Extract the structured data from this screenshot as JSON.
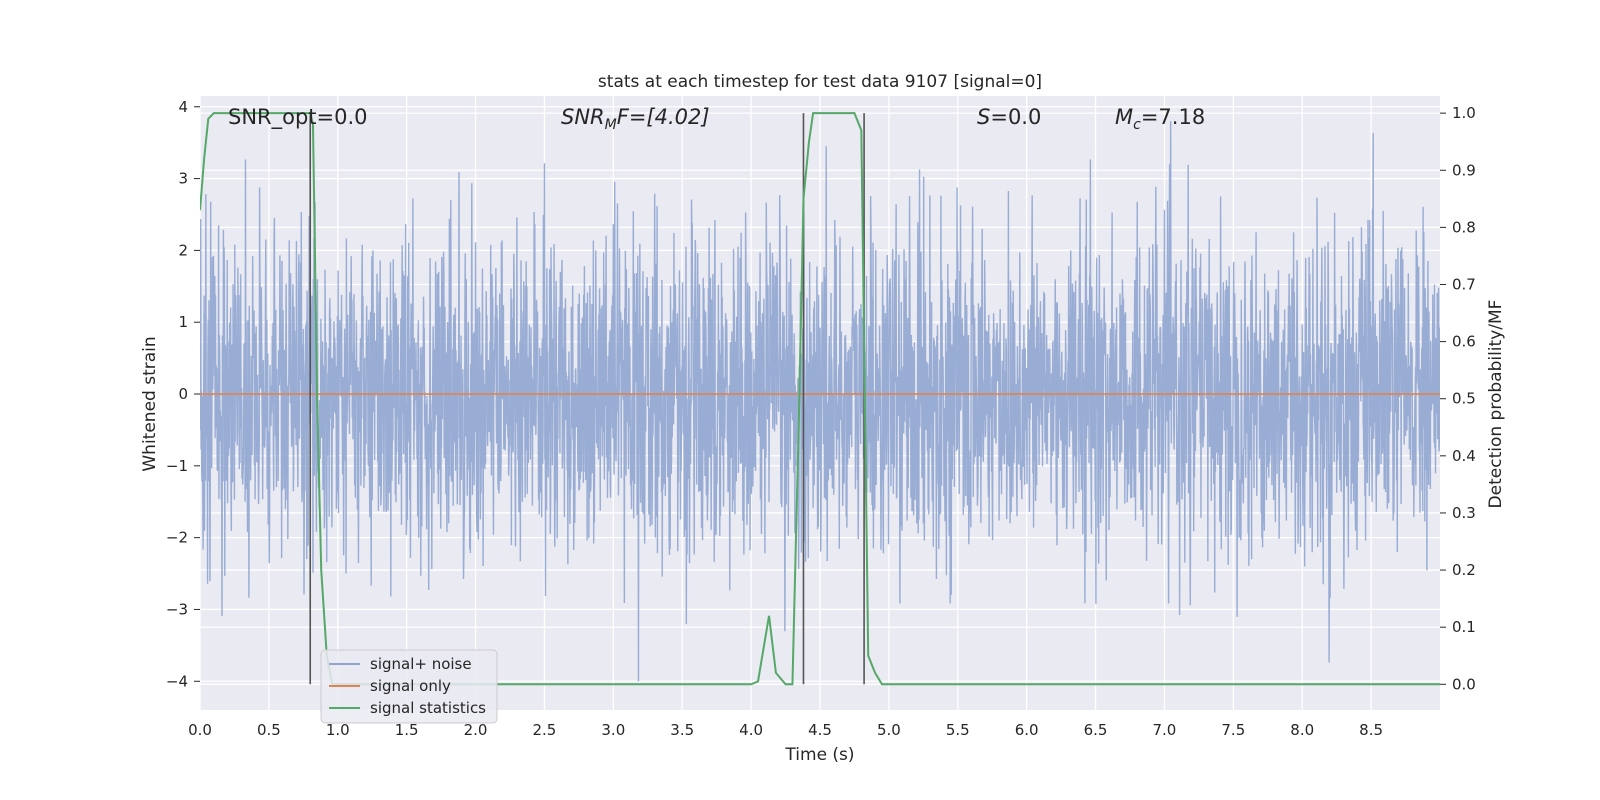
{
  "chart_data": {
    "type": "line",
    "title": "stats at each timestep for test data 9107 [signal=0]",
    "xlabel": "Time (s)",
    "ylabel": "Whitened strain",
    "ylabel_right": "Detection probability/MF",
    "xlim": [
      0.0,
      9.0
    ],
    "ylim": [
      -4.4,
      4.15
    ],
    "ylim_right": [
      -0.045,
      1.03
    ],
    "x_ticks": [
      "0.0",
      "0.5",
      "1.0",
      "1.5",
      "2.0",
      "2.5",
      "3.0",
      "3.5",
      "4.0",
      "4.5",
      "5.0",
      "5.5",
      "6.0",
      "6.5",
      "7.0",
      "7.5",
      "8.0",
      "8.5"
    ],
    "y_ticks": [
      "−4",
      "−3",
      "−2",
      "−1",
      "0",
      "1",
      "2",
      "3",
      "4"
    ],
    "y_ticks_right": [
      "0.0",
      "0.1",
      "0.2",
      "0.3",
      "0.4",
      "0.5",
      "0.6",
      "0.7",
      "0.8",
      "0.9",
      "1.0"
    ],
    "grid": true,
    "legend_position": "lower-left",
    "annotations": {
      "snr_opt": "SNR_opt=0.0",
      "snr_mf_main": "SNR",
      "snr_mf_sub": "M",
      "snr_mf_rest": "F=[4.02]",
      "s_main": "S",
      "s_rest": "=0.0",
      "mc_main": "M",
      "mc_sub": "c",
      "mc_rest": "=7.18"
    },
    "series": [
      {
        "name": "signal+ noise",
        "color": "#8fa5d0",
        "axis": "left",
        "description_type": "noise",
        "sample_rate_hz": 400,
        "amplitude_std": 1.1,
        "peak_max": 3.8,
        "peak_min": -4.0
      },
      {
        "name": "signal only",
        "color": "#dd8452",
        "axis": "left",
        "x": [
          0.0,
          9.0
        ],
        "y": [
          0.0,
          0.0
        ]
      },
      {
        "name": "signal statistics",
        "color": "#55a868",
        "axis": "right",
        "x": [
          0.0,
          0.03,
          0.06,
          0.1,
          0.15,
          0.2,
          0.5,
          0.75,
          0.8,
          0.82,
          0.85,
          0.88,
          0.92,
          0.96,
          1.0,
          3.5,
          4.0,
          4.05,
          4.13,
          4.18,
          4.25,
          4.3,
          4.35,
          4.38,
          4.42,
          4.45,
          4.5,
          4.75,
          4.8,
          4.85,
          4.9,
          4.95,
          5.0,
          9.0
        ],
        "y": [
          0.83,
          0.92,
          0.99,
          1.0,
          1.0,
          1.0,
          1.0,
          1.0,
          1.0,
          0.98,
          0.5,
          0.2,
          0.05,
          0.0,
          0.0,
          0.0,
          0.0,
          0.005,
          0.12,
          0.02,
          0.0,
          0.0,
          0.5,
          0.85,
          0.95,
          1.0,
          1.0,
          1.0,
          0.97,
          0.05,
          0.02,
          0.0,
          0.0,
          0.0
        ]
      }
    ],
    "vertical_markers": [
      0.8,
      4.38,
      4.82
    ]
  }
}
